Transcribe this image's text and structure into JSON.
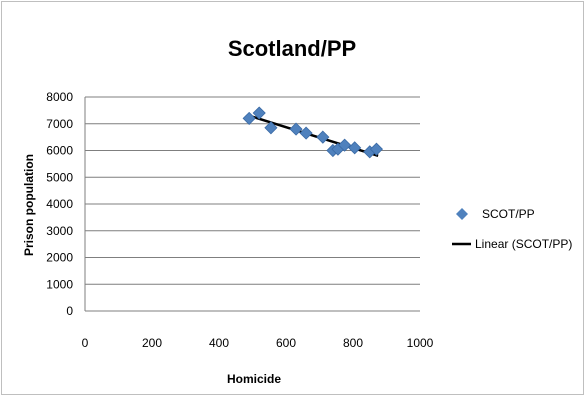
{
  "chart_data": {
    "type": "scatter",
    "title": "Scotland/PP",
    "xlabel": "Homicide",
    "ylabel": "Prison population",
    "xlim": [
      0,
      1000
    ],
    "ylim": [
      0,
      8000
    ],
    "x_ticks": [
      "0",
      "200",
      "400",
      "600",
      "800",
      "1000"
    ],
    "y_ticks": [
      "0",
      "1000",
      "2000",
      "3000",
      "4000",
      "5000",
      "6000",
      "7000",
      "8000"
    ],
    "grid": "horizontal",
    "legend_position": "right",
    "series": [
      {
        "name": "SCOT/PP",
        "marker": "diamond",
        "color": "#4f81bd",
        "points": [
          {
            "x": 490,
            "y": 7200
          },
          {
            "x": 520,
            "y": 7400
          },
          {
            "x": 555,
            "y": 6850
          },
          {
            "x": 630,
            "y": 6800
          },
          {
            "x": 660,
            "y": 6650
          },
          {
            "x": 710,
            "y": 6500
          },
          {
            "x": 740,
            "y": 6000
          },
          {
            "x": 755,
            "y": 6050
          },
          {
            "x": 775,
            "y": 6200
          },
          {
            "x": 805,
            "y": 6100
          },
          {
            "x": 850,
            "y": 5950
          },
          {
            "x": 870,
            "y": 6050
          }
        ]
      }
    ],
    "trendline": {
      "name": "Linear (SCOT/PP)",
      "type": "linear",
      "color": "#000000",
      "x": [
        490,
        875
      ],
      "y": [
        7300,
        5800
      ]
    }
  }
}
